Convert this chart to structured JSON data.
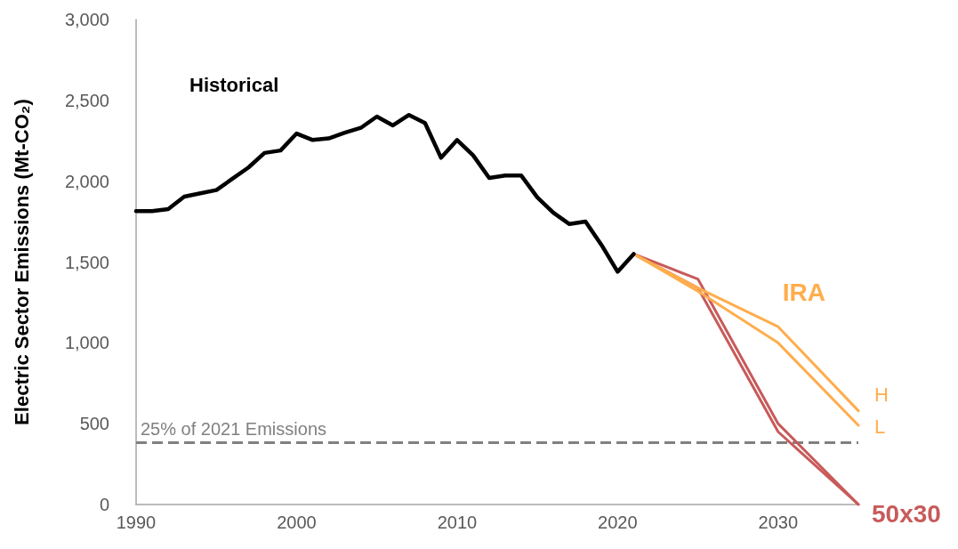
{
  "chart_data": {
    "type": "line",
    "ylabel": "Electric Sector Emissions (Mt-CO₂)",
    "xlim": [
      1990,
      2035
    ],
    "xticks": [
      1990,
      2000,
      2010,
      2020,
      2030
    ],
    "ylim": [
      0,
      3000
    ],
    "yticks": [
      0,
      500,
      {
        "value": 1000,
        "label": "1,000"
      },
      {
        "value": 1500,
        "label": "1,500"
      },
      {
        "value": 2000,
        "label": "2,000"
      },
      {
        "value": 2500,
        "label": "2,500"
      },
      {
        "value": 3000,
        "label": "3,000"
      }
    ],
    "grid": false,
    "legend": false,
    "marker": "none",
    "line_style": "solid",
    "series": [
      {
        "color": "#000000",
        "x": [
          1990,
          1991,
          1992,
          1993,
          1994,
          1995,
          1996,
          1997,
          1998,
          1999,
          2000,
          2001,
          2002,
          2003,
          2004,
          2005,
          2006,
          2007,
          2008,
          2009,
          2010,
          2011,
          2012,
          2013,
          2014,
          2015,
          2016,
          2017,
          2018,
          2019,
          2020,
          2021
        ],
        "values": [
          1815,
          1815,
          1828,
          1905,
          1925,
          1945,
          2015,
          2085,
          2175,
          2190,
          2295,
          2255,
          2265,
          2300,
          2330,
          2400,
          2345,
          2410,
          2360,
          2145,
          2255,
          2160,
          2020,
          2035,
          2035,
          1900,
          1805,
          1735,
          1750,
          1605,
          1440,
          1550
        ]
      },
      {
        "name": "H",
        "color": "#ffad4d",
        "x": [
          2021,
          2025,
          2030,
          2035
        ],
        "values": [
          1550,
          1340,
          1100,
          580
        ]
      },
      {
        "name": "L",
        "color": "#ffad4d",
        "x": [
          2021,
          2025,
          2030,
          2035
        ],
        "values": [
          1550,
          1320,
          1000,
          490
        ]
      },
      {
        "color": "#c85a5a",
        "x": [
          2021,
          2025,
          2030,
          2035
        ],
        "values": [
          1550,
          1395,
          500,
          0
        ]
      },
      {
        "color": "#c85a5a",
        "x": [
          2021,
          2025,
          2030,
          2035
        ],
        "values": [
          1550,
          1340,
          450,
          0
        ]
      }
    ],
    "ref_lines": [
      {
        "axis": "y",
        "value": 385,
        "label": "25% of 2021 Emissions",
        "color": "#808080",
        "line_style": "dashed"
      }
    ],
    "annotations": [
      "Historical",
      {
        "text": "IRA",
        "x": 2030,
        "y": 1100
      },
      {
        "text": "50x30",
        "x": 2035,
        "y": 0
      }
    ]
  }
}
